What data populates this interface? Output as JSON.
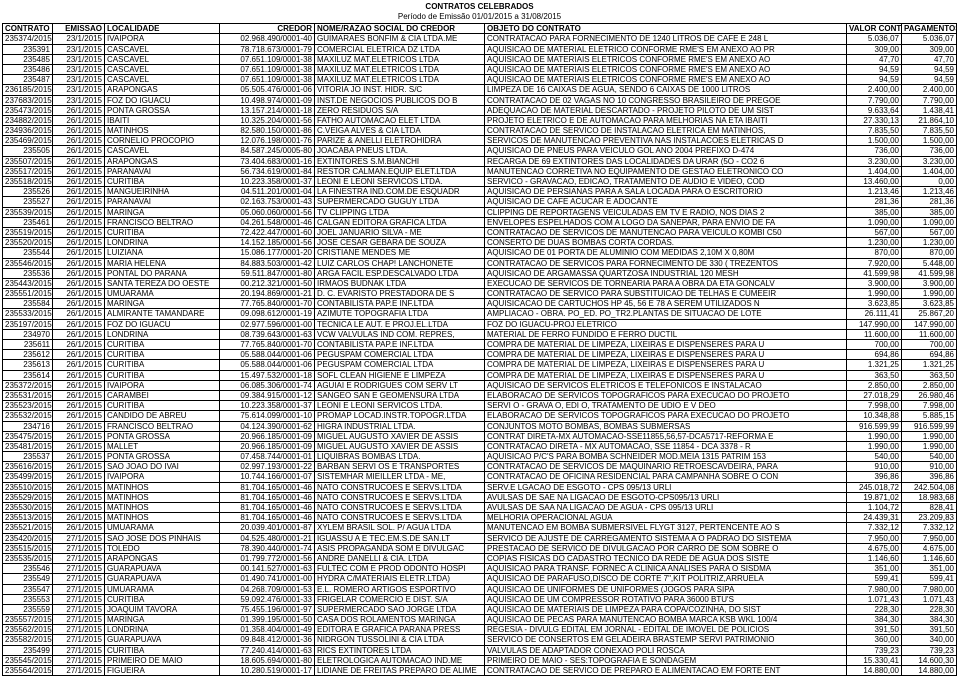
{
  "title": "CONTRATOS CELEBRADOS",
  "subtitle": "Período de Emissão 01/01/2015 a 31/08/2015",
  "colors": {
    "text": "#000000",
    "border": "#000000",
    "background": "#ffffff"
  },
  "columns": [
    {
      "key": "contrato",
      "label": "CONTRATO",
      "align": "right"
    },
    {
      "key": "emissao",
      "label": "EMISSAO",
      "align": "right"
    },
    {
      "key": "localidade",
      "label": "LOCALIDADE",
      "align": "left"
    },
    {
      "key": "credor",
      "label": "CREDOR",
      "align": "right"
    },
    {
      "key": "nome",
      "label": "NOME/RAZAO SOCIAL DO CREDOR",
      "align": "left"
    },
    {
      "key": "objeto",
      "label": "OBJETO DO CONTRATO",
      "align": "left"
    },
    {
      "key": "valor",
      "label": "VALOR CONTRATADO(*)",
      "align": "right"
    },
    {
      "key": "pagamentos",
      "label": "PAGAMENTOS",
      "align": "right"
    }
  ],
  "rows": [
    [
      "235374/2015",
      "23/1/2015",
      "IVAIPORA",
      "02.968.490/0001-40",
      "GUIMARAES BONFIM & CIA LTDA.ME",
      "CONTRATACAO PARA FORNECIMENTO DE 1240 LITROS DE CAFE E 248 L",
      "5.036,07",
      "5.036,07"
    ],
    [
      "235391",
      "23/1/2015",
      "CASCAVEL",
      "78.718.673/0001-79",
      "COMERCIAL ELETRICA DZ LTDA",
      "AQUISICAO DE MATERIAL ELETRICO CONFORME RME'S EM ANEXO AO PR",
      "309,00",
      "309,00"
    ],
    [
      "235485",
      "23/1/2015",
      "CASCAVEL",
      "07.651.109/0001-38",
      "MAXILUZ MAT.ELETRICOS LTDA",
      "AQUISICAO DE MATERIAIS ELETRICOS CONFORME RME'S EM ANEXO AO",
      "47,70",
      "47,70"
    ],
    [
      "235486",
      "23/1/2015",
      "CASCAVEL",
      "07.651.109/0001-38",
      "MAXILUZ MAT.ELETRICOS LTDA",
      "AQUISICAO DE MATERIAIS ELETRICOS CONFORME RME'S EM ANEXO AO",
      "94,59",
      "94,59"
    ],
    [
      "235487",
      "23/1/2015",
      "CASCAVEL",
      "07.651.109/0001-38",
      "MAXILUZ MAT.ELETRICOS LTDA",
      "AQUISICAO DE MATERIAIS ELETRICOS CONFORME RME'S EM ANEXO AO",
      "94,59",
      "94,59"
    ],
    [
      "236185/2015",
      "23/1/2015",
      "ARAPONGAS",
      "05.505.476/0001-06",
      "VITORIA JO INST. HIDR. S/C",
      "LIMPEZA DE 16 CAIXAS DE AGUA, SENDO 6 CAIXAS DE 1000 LITROS",
      "2.400,00",
      "2.400,00"
    ],
    [
      "237683/2015",
      "23/1/2015",
      "FOZ DO IGUACU",
      "10.498.974/0001-09",
      "INST.DE NEGOCIOS PUBLICOS DO B",
      "CONTRATACAO DE 02 VAGAS NO 10 CONGRESSO BRASILEIRO DE PREGOE",
      "7.790,00",
      "7.790,00"
    ],
    [
      "235473/2015",
      "26/1/2015",
      "PONTA GROSSA",
      "13.157.214/0001-18",
      "ZERO RESIDUOS S/A",
      "ADEQUACAO DE MATERIAL DESCARTADO - PROJETO PILOTO DE UM SIST",
      "9.633,64",
      "1.438,41"
    ],
    [
      "234882/2015",
      "26/1/2015",
      "IBAITI",
      "10.325.204/0001-56",
      "FATHO AUTOMACAO ELET LTDA",
      "PROJETO ELETRICO E DE AUTOMACAO PARA MELHORIAS NA ETA IBAITI",
      "27.330,13",
      "21.864,10"
    ],
    [
      "234936/2015",
      "26/1/2015",
      "MATINHOS",
      "82.580.150/0001-86",
      "C.VEIGA ALVES & CIA LTDA",
      "CONTRATACAO DE SERVICO DE INSTALACAO ELETRICA EM MATINHOS,",
      "7.835,50",
      "7.835,50"
    ],
    [
      "235469/2015",
      "26/1/2015",
      "CORNELIO PROCOPIO",
      "12.076.198/0001-76",
      "PARIZE & ANELLI ELETROHIDRA",
      "SERVICOS DE MANUTENCAO PREVENTIVA NAS INSTALACOES ELETRICAS D",
      "1.500,00",
      "1.500,00"
    ],
    [
      "235505",
      "26/1/2015",
      "CASCAVEL",
      "84.587.245/0005-80",
      "JOACABA PNEUS LTDA.",
      "AQUISICAO DE PNEUS PARA VEICULO GOL ANO 2004 PREFIXO D-474",
      "736,00",
      "736,00"
    ],
    [
      "235507/2015",
      "26/1/2015",
      "ARAPONGAS",
      "73.404.683/0001-16",
      "EXTINTORES S.M.BIANCHI",
      "RECARGA DE 69 EXTINTORES DAS LOCALIDADES DA URAR (5O - CO2 6",
      "3.230,00",
      "3.230,00"
    ],
    [
      "235517/2015",
      "26/1/2015",
      "PARANAVAI",
      "56.734.619/0001-84",
      "RESTOR CALMAN.EQUIP ELET.LTDA",
      "MANUTENCAO CORRETIVA NO EQUIPAMENTO DE GESTAO ELETRONICO CO",
      "1.404,00",
      "1.404,00"
    ],
    [
      "235518/2015",
      "26/1/2015",
      "CURITIBA",
      "10.223.358/0001-37",
      "LEONI E LEONI SERVICOS LTDA.",
      "SERVICO - GRAVACAO, EDICAO, TRATAMENTO DE AUDIO E VIDEO, COD",
      "13.460,00",
      "0,00"
    ],
    [
      "235526",
      "26/1/2015",
      "MANGUEIRINHA",
      "04.511.201/0001-04",
      "LA FINESTRA IND.COM.DE ESQUADR",
      "AQUISICAO DE PERSIANAS PARA A SALA LOCADA PARA O ESCRITORIO",
      "1.213,46",
      "1.213,46"
    ],
    [
      "235527",
      "26/1/2015",
      "PARANAVAI",
      "02.163.753/0001-43",
      "SUPERMERCADO GUGUY LTDA",
      "AQUISICAO DE CAFE ACUCAR E ADOCANTE",
      "281,36",
      "281,36"
    ],
    [
      "235539/2015",
      "26/1/2015",
      "MARINGA",
      "05.060.060/0001-56",
      "TV CLIPPING LTDA",
      "CLIPPING DE REPORTAGENS VEICULADAS EM TV E RADIO, NOS DIAS 2",
      "385,00",
      "385,00"
    ],
    [
      "235461",
      "26/1/2015",
      "FRANCISCO BELTRAO",
      "04.261.548/0001-46",
      "CALGAN EDITORA GRAFICA LTDA",
      "ENVELOPES ESPELHADOS COM A LOGO DA SANEPAR, PARA ENVIO DE FA",
      "1.090,00",
      "1.090,00"
    ],
    [
      "235519/2015",
      "26/1/2015",
      "CURITIBA",
      "72.422.447/0001-60",
      "JOEL JANUARIO SILVA - ME",
      "CONTRATACAO DE SERVICOS DE MANUTENCAO PARA VEICULO KOMBI C50",
      "567,00",
      "567,00"
    ],
    [
      "235520/2015",
      "26/1/2015",
      "LONDRINA",
      "14.152.185/0001-56",
      "JOSE CESAR GEBARA DE SOUZA",
      "CONSERTO DE DUAS BOMBAS CORTA CORDAS.",
      "1.230,00",
      "1.230,00"
    ],
    [
      "235544",
      "26/1/2015",
      "LUIZIANA",
      "15.086.177/0001-20",
      "CRISTIANE MENDES ME",
      "AQUISICAO DE 01 PORTA DE ALUMINIO COM MEDIDAS 2,10M X 0,80M",
      "870,00",
      "870,00"
    ],
    [
      "235546/2015",
      "26/1/2015",
      "MARIA HELENA",
      "84.883.503/0001-42",
      "LUIZ CARLOS CHAP! LANCHONETE",
      "CONTRATACAO DE SERVICOS PARA FORNECIMENTO DE 330 ( TREZENTOS",
      "7.920,00",
      "5.448,00"
    ],
    [
      "235536",
      "26/1/2015",
      "PONTAL DO PARANA",
      "59.511.847/0001-80",
      "ARGA FACIL ESP.DESCALVADO LTDA",
      "AQUISICAO DE ARGAMASSA QUARTZOSA INDUSTRIAL 120 MESH",
      "41.599,98",
      "41.599,98"
    ],
    [
      "235443/2015",
      "26/1/2015",
      "SANTA TEREZA DO OESTE",
      "00.212.321/0001-50",
      "IRMAOS BUDNAK LTDA",
      "EXECUCAO DE SERVICOS DE TORNEARIA PARA A OBRA DA ETA GONCALV",
      "3.900,00",
      "3.900,00"
    ],
    [
      "235551/2015",
      "26/1/2015",
      "UMUARAMA",
      "20.194.869/0001-21",
      "D. C. EVARISTO PRESTADORA DE S",
      "CONTRATACAO DE SERVICO PARA SUBSTITUICAO DE TELHAS E CUMEEIR",
      "1.990,00",
      "1.990,00"
    ],
    [
      "235584",
      "26/1/2015",
      "MARINGA",
      "77.765.840/0001-70",
      "CONTABILISTA PAP.E INF.LTDA",
      "AQUISICACAO DE CARTUCHOS HP 45, 56 E 78 A SEREM UTILIZADOS N",
      "3.623,85",
      "3.623,85"
    ],
    [
      "235533/2015",
      "26/1/2015",
      "ALMIRANTE TAMANDARE",
      "09.098.612/0001-19",
      "AZIMUTE TOPOGRAFIA LTDA",
      "AMPLIACAO - OBRA. PO_ED. PO_TR2.PLANTAS DE SITUACAO DE LOTE",
      "26.111,41",
      "25.867,20"
    ],
    [
      "235197/2015",
      "26/1/2015",
      "FOZ DO IGUACU",
      "02.977.596/0001-00",
      "TECNICA LE AUT. E PROJ.EL.LTDA",
      "FOZ DO IGUACU-PROJ ELETRICO",
      "147.990,00",
      "147.990,00"
    ],
    [
      "234970",
      "26/1/2015",
      "LONDRINA",
      "08.739.643/0001-63",
      "VCW VALVULAS IND COM. REPRES,",
      "MATERIAL DE FERRO FUNDIDO E FERRO DUCTIL",
      "11.600,00",
      "11.600,00"
    ],
    [
      "235611",
      "26/1/2015",
      "CURITIBA",
      "77.765.840/0001-70",
      "CONTABILISTA PAP.E INF.LTDA",
      "COMPRA DE MATERIAL DE LIMPEZA, LIXEIRAS E DISPENSERES PARA U",
      "700,00",
      "700,00"
    ],
    [
      "235612",
      "26/1/2015",
      "CURITIBA",
      "05.588.044/0001-06",
      "PEGUSPAM COMERCIAL LTDA",
      "COMPRA DE MATERIAL DE LIMPEZA, LIXEIRAS E DISPENSERES PARA U",
      "694,86",
      "694,86"
    ],
    [
      "235613",
      "26/1/2015",
      "CURITIBA",
      "05.588.044/0001-06",
      "PEGUSPAM COMERCIAL LTDA",
      "COMPRA DE MATERIAL DE LIMPEZA, LIXEIRAS E DISPENSERES PARA U",
      "1.321,25",
      "1.321,25"
    ],
    [
      "235614",
      "26/1/2015",
      "CURITIBA",
      "15.497.532/0001-18",
      "SOFL CLEAN HIGIENE E LIMPEZA",
      "COMPRA DE MATERIAL DE LIMPEZA, LIXEIRAS E DISPENSERES PARA U",
      "363,50",
      "363,50"
    ],
    [
      "235372/2015",
      "26/1/2015",
      "IVAIPORA",
      "06.085.306/0001-74",
      "AGUIAI E RODRIGUES COM SERV LT",
      "AQUISICAO DE SERVICOS ELETRICOS E TELEFONICOS E INSTALACAO",
      "2.850,00",
      "2.850,00"
    ],
    [
      "235531/2015",
      "26/1/2015",
      "CARAMBEI",
      "09.384.915/0001-12",
      "SANGEO SAN E GEOMENSURA LTDA",
      "ELABORACAO DE SERVICOS TOPOGRAFICOS PARA EXECUCAO DO PROJETO",
      "27.018,29",
      "26.980,46"
    ],
    [
      "235523/2015",
      "26/1/2015",
      "CURITIBA",
      "10.223.358/0001-37",
      "LEONI E LEONI SERVICOS LTDA.",
      "SERVI O - GRAVA  O, EDI  O, TRATAMENTO DE  UDIO E V DEO",
      "7.998,00",
      "7.998,00"
    ],
    [
      "235532/2015",
      "26/1/2015",
      "CANDIDO DE ABREU",
      "75.614.099/0001-10",
      "PROMAP LOCAD.INSTR.TOPOGR.LTDA",
      "ELABORACAO DE SERVICOS TOPOGRAFICOS PARA EXECUCAO DO PROJETO",
      "10.348,88",
      "5.885,15"
    ],
    [
      "234716",
      "26/1/2015",
      "FRANCISCO BELTRAO",
      "04.124.390/0001-62",
      "HIGRA INDUSTRIAL LTDA.",
      "CONJUNTOS MOTO BOMBAS, BOMBAS SUBMERSAS",
      "916.599,99",
      "916.599,99"
    ],
    [
      "235475/2015",
      "26/1/2015",
      "PONTA GROSSA",
      "20.966.185/0001-09",
      "MIGUEL AUGUSTO XAVIER DE ASSIS",
      "CONTRAT DIRETA-MX AUTOMACAO-SSE11855,56,57-DCA5717-REFORMA E",
      "1.990,00",
      "1.990,00"
    ],
    [
      "235481/2015",
      "26/1/2015",
      "MALLET",
      "20.966.185/0001-09",
      "MIGUEL AUGUSTO XAVIER DE ASSIS",
      "CONTRATACAO DIRETA - MX AUTOMACAO, SSE 11854 - DCA 3378 - R",
      "1.990,00",
      "1.990,00"
    ],
    [
      "235537",
      "26/1/2015",
      "PONTA GROSSA",
      "07.458.744/0001-01",
      "LIQUIBRAS BOMBAS LTDA.",
      "AQUISICAO P/C'S PARA BOMBA SCHNEIDER MOD.MEIA 1315 PATRIM 153",
      "540,00",
      "540,00"
    ],
    [
      "235616/2015",
      "26/1/2015",
      "SAO JOAO DO IVAI",
      "02.997.193/0001-22",
      "BARBAN SERVI  OS E TRANSPORTES",
      "CONTRATACAO DE SERVICOS DE MAQUINARIO RETROESCAVDEIRA, PARA",
      "910,00",
      "910,00"
    ],
    [
      "235499/2015",
      "26/1/2015",
      "IVAIPORA",
      "10.744.166/0001-07",
      "SISTEMHAR MIEILLER LTDA - ME,",
      "CONTRATACAO DE OFICINA RESIDENCIAL PARA CAMPANHA SOBRE O CON",
      "396,86",
      "396,86"
    ],
    [
      "235510/2015",
      "26/1/2015",
      "MATINHOS",
      "81.704.165/0001-46",
      "NATO CONSTRUCOES E SERVS.LTDA",
      "SERV.E LGACAO DE ESGOTO - CPS 095/13 URLI",
      "245.018,72",
      "242.504,08"
    ],
    [
      "235529/2015",
      "26/1/2015",
      "MATINHOS",
      "81.704.165/0001-46",
      "NATO CONSTRUCOES E SERVS.LTDA",
      "AVULSAS DE SAE NA LIGACAO DE ESGOTO-CPS095/13 URLI",
      "19.871,02",
      "18.983,68"
    ],
    [
      "235530/2015",
      "26/1/2015",
      "MATINHOS",
      "81.704.165/0001-46",
      "NATO CONSTRUCOES E SERVS.LTDA",
      "AVULSAS DE SAA NA LIGACAO DE AGUA - CPS 095/13 URLI",
      "1.104,72",
      "828,41"
    ],
    [
      "235513/2015",
      "26/1/2015",
      "MATINHOS",
      "81.704.165/0001-46",
      "NATO CONSTRUCOES E SERVS.LTDA",
      "MELHORIA OPERACIONAL AGUA",
      "24.439,31",
      "23.209,83"
    ],
    [
      "235521/2015",
      "26/1/2015",
      "UMUARAMA",
      "20.039.401/0001-87",
      "XYLEM BRASIL SOL. P/ AGUA LTDA",
      "MANUTENCAO EM BOMBA SUBMERSIVEL FLYGT 3127, PERTENCENTE AO S",
      "7.332,12",
      "7.332,12"
    ],
    [
      "235420/2015",
      "27/1/2015",
      "SAO JOSE DOS PINHAIS",
      "04.525.480/0001-21",
      "IGUASSU A E TEC.EM.S.DE SAN.LT",
      "SERVICO DE AJUSTE DE CARREGAMENTO SISTEMA A O PADRAO DO SISTEMA",
      "7.950,00",
      "7.950,00"
    ],
    [
      "235515/2015",
      "27/1/2015",
      "TOLEDO",
      "78.390.440/0001-74",
      "ASIS PROPAGANDA SOM E DIVULGAC",
      "PRESTACAO DE SERVICO DE DIVULGACAO POR CARRO DE SOM SOBRE O",
      "4.675,00",
      "4.675,00"
    ],
    [
      "235535/2015",
      "27/1/2015",
      "ARAPONGAS",
      "01.799.772/0001-56",
      "ANDRE DANELLI & CIA. LTDA",
      "COPIAS FISICAS DO CADASTRO TECNICO DA REDE DE AGUA DOS SISTE",
      "1.146,60",
      "1.146,60"
    ],
    [
      "235546",
      "27/1/2015",
      "GUARAPUAVA",
      "00.141.527/0001-63",
      "FULTEC COM E PROD ODONTO HOSPI",
      "AQUISICAO PARA TRANSF. FORNEC A CLINICA ANALISES PARA O SISDMA",
      "351,00",
      "351,00"
    ],
    [
      "235549",
      "27/1/2015",
      "GUARAPUAVA",
      "01.490.741/0001-00",
      "HYDRA  C/MATERIAIS ELETR.LTDA)",
      "AQUISICAO DE PARAFUSO,DISCO DE CORTE 7\",KIT POLITRIZ,ARRUELA",
      "599,41",
      "599,41"
    ],
    [
      "235547",
      "27/1/2015",
      "UMUARAMA",
      "04.268.709/0001-53",
      "E.L. ROMERO ARTIGOS ESPORTIVO",
      "AQUISICAO DE UNIFORMES DE UNIFORMES (JOGOS PARA SIPA",
      "7.980,00",
      "7.980,00"
    ],
    [
      "235553",
      "27/1/2015",
      "CURITIBA",
      "59.092.476/0001-33",
      "FRIGELAR COMERCIO E DIST. S/A",
      "AQUISICAO DE UM COMPRESSOR ROTATIVO PARA 36000 BTU'S",
      "1.071,43",
      "1.071,43"
    ],
    [
      "235559",
      "27/1/2015",
      "JOAQUIM TAVORA",
      "75.455.196/0001-97",
      "SUPERMERCADO SAO JORGE LTDA",
      "AQUISICAO DE MATERIAIS DE LIMPEZA PARA COPA/COZINHA, DO SIST",
      "228,30",
      "228,30"
    ],
    [
      "235557/2015",
      "27/1/2015",
      "MARINGA",
      "01.399.195/0001-50",
      "CASA DOS ROLAMENTOS MARINGA",
      "AQUISICAO DE PECAS PARA MANUTENCAO BOMBA MARCA KSB WKL 100/4",
      "384,30",
      "384,30"
    ],
    [
      "235562/2015",
      "27/1/2015",
      "LONDRINA",
      "01.358.404/0001-49",
      "EDITORA E GRAFICA PARANA PRESS",
      "REGESIA - DIVULG EDITAL EM JORNAL - EDITAL DE IMOVEL DE POLICIOS",
      "391,50",
      "391,50"
    ],
    [
      "235582/2015",
      "27/1/2015",
      "GUARAPUAVA",
      "09.848.412/0001-36",
      "NIDRGON TUSSOLINI & CIA LTDA",
      "SERVICO DE CONSERTOS EM GELADEIRA BRASTEMP SERVI PATRIMONIO",
      "360,00",
      "340,00"
    ],
    [
      "235499",
      "27/1/2015",
      "CURITIBA",
      "77.240.414/0001-63",
      "RICS EXTINTORES LTDA",
      "VALVULAS DE ADAPTADOR CONEXAO POLI ROSCA",
      "739,23",
      "739,23"
    ],
    [
      "235545/2015",
      "27/1/2015",
      "PRIMEIRO DE MAIO",
      "18.605.694/0001-80",
      "ELETROLOGICA AUTOMACAO IND.ME",
      "PRIMEIRO DE MAIO - SES:TOPOGRAFIA E SONDAGEM",
      "15.330,41",
      "14.600,30"
    ],
    [
      "235564/2015",
      "27/1/2015",
      "FIGUEIRA",
      "10.280.519/0001-17",
      "LIDIANE DE FREITAS PREPARO DE ALIME",
      "CONTRATACAO DE SERVICO DE PREPARO E ALIMENTACAO EM FORTE ENT",
      "14.880,00",
      "14.880,00"
    ]
  ]
}
